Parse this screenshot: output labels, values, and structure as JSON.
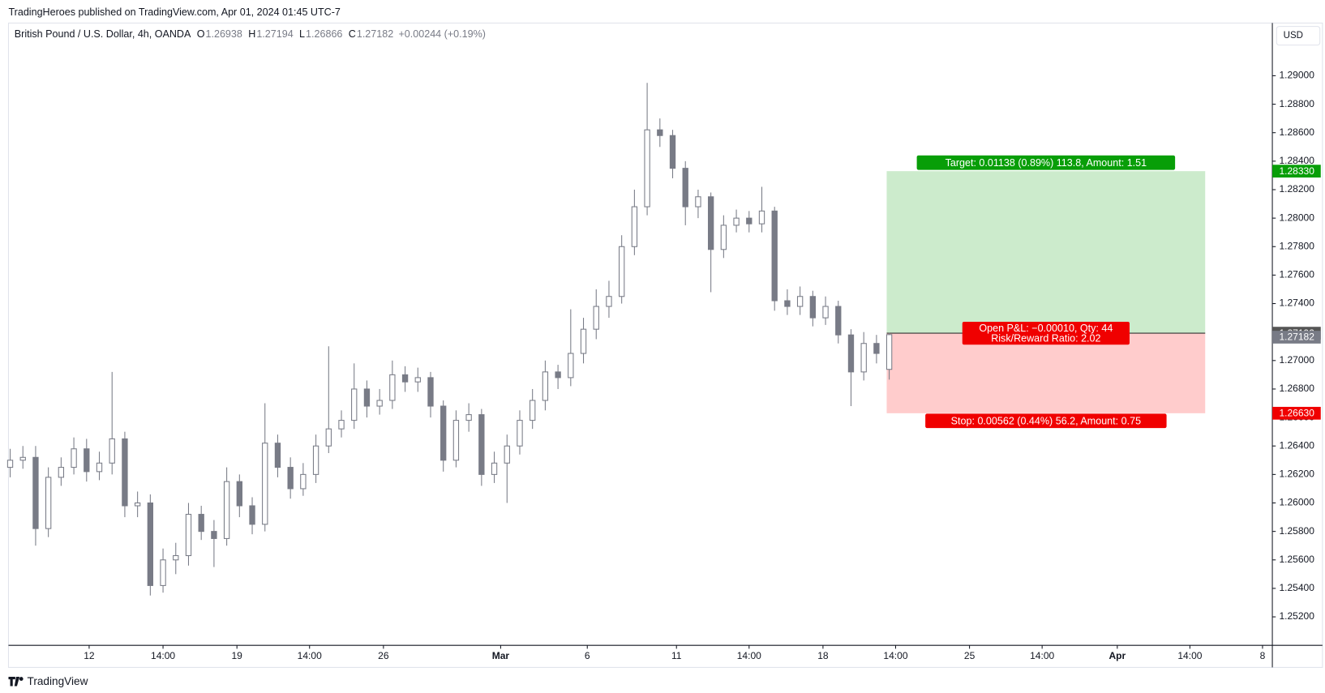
{
  "header": "TradingHeroes published on TradingView.com, Apr 01, 2024 01:45 UTC-7",
  "footer": "TradingView",
  "chart_data": {
    "type": "candlestick",
    "title": "British Pound / U.S. Dollar, 4h, OANDA",
    "ohlc_letters": [
      "O",
      "H",
      "L",
      "C"
    ],
    "change": "+0.00244 (+0.19%)",
    "currency": "USD",
    "up_color": "#ffffff",
    "down_color": "#787b86",
    "wick_color": "#787b86",
    "grid": false,
    "open": [
      1.2625,
      1.263,
      1.2632,
      1.2582,
      1.2618,
      1.2625,
      1.2638,
      1.2622,
      1.2628,
      1.2645,
      1.2598,
      1.26,
      1.2542,
      1.256,
      1.2563,
      1.2592,
      1.258,
      1.2575,
      1.2615,
      1.2598,
      1.2585,
      1.2642,
      1.2625,
      1.261,
      1.262,
      1.264,
      1.2652,
      1.2658,
      1.268,
      1.2668,
      1.2672,
      1.269,
      1.2685,
      1.2688,
      1.2668,
      1.263,
      1.2658,
      1.2662,
      1.262,
      1.2628,
      1.264,
      1.2658,
      1.2672,
      1.2692,
      1.2688,
      1.2705,
      1.2722,
      1.2738,
      1.2745,
      1.278,
      1.2808,
      1.2862,
      1.2858,
      1.2835,
      1.2808,
      1.2815,
      1.2778,
      1.2795,
      1.28,
      1.2796,
      1.2805,
      1.2742,
      1.2738,
      1.2745,
      1.273,
      1.2738,
      1.2718,
      1.2692,
      1.2712,
      1.26938
    ],
    "high": [
      1.2638,
      1.264,
      1.264,
      1.2625,
      1.2632,
      1.2646,
      1.2645,
      1.2636,
      1.2692,
      1.265,
      1.2608,
      1.2606,
      1.2568,
      1.2572,
      1.26,
      1.2598,
      1.2588,
      1.2625,
      1.262,
      1.2604,
      1.267,
      1.2648,
      1.2632,
      1.2628,
      1.2648,
      1.271,
      1.2665,
      1.2698,
      1.2686,
      1.268,
      1.27,
      1.2696,
      1.2695,
      1.2692,
      1.2672,
      1.2665,
      1.267,
      1.2666,
      1.2636,
      1.2648,
      1.2665,
      1.268,
      1.27,
      1.2697,
      1.2736,
      1.273,
      1.275,
      1.2756,
      1.2788,
      1.282,
      1.2895,
      1.287,
      1.2862,
      1.284,
      1.282,
      1.2818,
      1.2802,
      1.2806,
      1.2805,
      1.2822,
      1.2808,
      1.275,
      1.2752,
      1.2749,
      1.2745,
      1.2742,
      1.2722,
      1.272,
      1.2718,
      1.27194
    ],
    "low": [
      1.2618,
      1.2624,
      1.257,
      1.2576,
      1.2612,
      1.262,
      1.2615,
      1.2616,
      1.262,
      1.259,
      1.259,
      1.2535,
      1.2537,
      1.255,
      1.2556,
      1.2574,
      1.2555,
      1.257,
      1.259,
      1.2578,
      1.258,
      1.2618,
      1.2603,
      1.2605,
      1.2614,
      1.2635,
      1.2646,
      1.2652,
      1.266,
      1.2662,
      1.2666,
      1.2678,
      1.2678,
      1.266,
      1.2622,
      1.2625,
      1.265,
      1.2612,
      1.2614,
      1.26,
      1.2634,
      1.2652,
      1.2665,
      1.268,
      1.2682,
      1.2698,
      1.2715,
      1.273,
      1.274,
      1.2774,
      1.2802,
      1.285,
      1.2828,
      1.2795,
      1.28,
      1.2748,
      1.2772,
      1.279,
      1.279,
      1.279,
      1.2735,
      1.2732,
      1.2732,
      1.2724,
      1.2725,
      1.2712,
      1.2668,
      1.2686,
      1.2698,
      1.26866
    ],
    "close": [
      1.263,
      1.2632,
      1.2582,
      1.2618,
      1.2625,
      1.2638,
      1.2622,
      1.2628,
      1.2645,
      1.2598,
      1.26,
      1.2542,
      1.256,
      1.2563,
      1.2592,
      1.258,
      1.2575,
      1.2615,
      1.2598,
      1.2585,
      1.2642,
      1.2625,
      1.261,
      1.262,
      1.264,
      1.2652,
      1.2658,
      1.268,
      1.2668,
      1.2672,
      1.269,
      1.2685,
      1.2688,
      1.2668,
      1.263,
      1.2658,
      1.2662,
      1.262,
      1.2628,
      1.264,
      1.2658,
      1.2672,
      1.2692,
      1.2688,
      1.2705,
      1.2722,
      1.2738,
      1.2745,
      1.278,
      1.2808,
      1.2862,
      1.2858,
      1.2835,
      1.2808,
      1.2815,
      1.2778,
      1.2795,
      1.28,
      1.2796,
      1.2805,
      1.2742,
      1.2738,
      1.2745,
      1.273,
      1.2738,
      1.2718,
      1.2692,
      1.2712,
      1.2705,
      1.27182
    ],
    "xlim": [
      -0.13,
      99.07
    ],
    "xticks": [
      {
        "value": 6.2,
        "label": "12"
      },
      {
        "value": 12,
        "label": "14:00"
      },
      {
        "value": 17.8,
        "label": "19"
      },
      {
        "value": 23.5,
        "label": "14:00"
      },
      {
        "value": 29.3,
        "label": "26"
      },
      {
        "value": 38.5,
        "label": "Mar"
      },
      {
        "value": 45.3,
        "label": "6"
      },
      {
        "value": 52.3,
        "label": "11"
      },
      {
        "value": 58,
        "label": "14:00"
      },
      {
        "value": 63.8,
        "label": "18"
      },
      {
        "value": 69.5,
        "label": "14:00"
      },
      {
        "value": 75.3,
        "label": "25"
      },
      {
        "value": 81,
        "label": "14:00"
      },
      {
        "value": 86.9,
        "label": "Apr"
      },
      {
        "value": 92.6,
        "label": "14:00"
      },
      {
        "value": 98.3,
        "label": "8"
      }
    ],
    "ylim": [
      1.25,
      1.2937
    ],
    "yticks": [
      {
        "value": 1.252,
        "label": "1.25200"
      },
      {
        "value": 1.254,
        "label": "1.25400"
      },
      {
        "value": 1.256,
        "label": "1.25600"
      },
      {
        "value": 1.258,
        "label": "1.25800"
      },
      {
        "value": 1.26,
        "label": "1.26000"
      },
      {
        "value": 1.262,
        "label": "1.26200"
      },
      {
        "value": 1.264,
        "label": "1.26400"
      },
      {
        "value": 1.266,
        "label": "1.26600"
      },
      {
        "value": 1.268,
        "label": "1.26800"
      },
      {
        "value": 1.27,
        "label": "1.27000"
      },
      {
        "value": 1.272,
        "label": "1.27200"
      },
      {
        "value": 1.274,
        "label": "1.27400"
      },
      {
        "value": 1.276,
        "label": "1.27600"
      },
      {
        "value": 1.278,
        "label": "1.27800"
      },
      {
        "value": 1.28,
        "label": "1.28000"
      },
      {
        "value": 1.282,
        "label": "1.28200"
      },
      {
        "value": 1.284,
        "label": "1.28400"
      },
      {
        "value": 1.286,
        "label": "1.28600"
      },
      {
        "value": 1.288,
        "label": "1.28800"
      },
      {
        "value": 1.29,
        "label": "1.29000"
      }
    ],
    "position": {
      "start": 68.8,
      "end": 93.8,
      "entry": 1.27192,
      "target": {
        "value": 1.2833,
        "label": "1.28330"
      },
      "stop": {
        "value": 1.2663,
        "label": "1.26630"
      },
      "target_label": "Target: 0.01138 (0.89%) 113.8, Amount: 1.51",
      "pnl_label": "Open P&L: −0.00010, Qty: 44",
      "rr_label": "Risk/Reward Ratio: 2.02",
      "stop_label": "Stop: 0.00562 (0.44%) 56.2, Amount: 0.75",
      "profit_color": "#ccebcc",
      "loss_color": "#ffcccc",
      "target_color": "#089e08",
      "stop_color": "#f00000",
      "entry_color": "#555555"
    }
  }
}
